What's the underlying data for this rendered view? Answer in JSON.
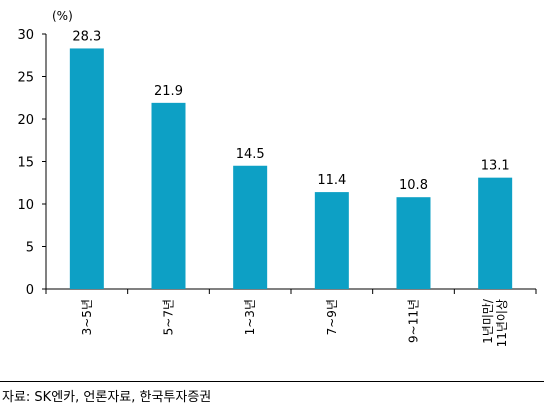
{
  "chart_data": {
    "type": "bar",
    "unit_label": "(%)",
    "categories": [
      "3~5년",
      "5~7년",
      "1~3년",
      "7~9년",
      "9~11년",
      "1년미만/11년이상"
    ],
    "category_lines": [
      [
        "3~5년"
      ],
      [
        "5~7년"
      ],
      [
        "1~3년"
      ],
      [
        "7~9년"
      ],
      [
        "9~11년"
      ],
      [
        "1년미만/",
        "11년이상"
      ]
    ],
    "values": [
      28.3,
      21.9,
      14.5,
      11.4,
      10.8,
      13.1
    ],
    "value_labels": [
      "28.3",
      "21.9",
      "14.5",
      "11.4",
      "10.8",
      "13.1"
    ],
    "yticks": [
      "0",
      "5",
      "10",
      "15",
      "20",
      "25",
      "30"
    ],
    "ylim": [
      0,
      30
    ],
    "bar_color": "#0DA0C5",
    "grid": false,
    "title": "",
    "xlabel": "",
    "ylabel": ""
  },
  "source": "자료: SK엔카, 언론자료, 한국투자증권"
}
